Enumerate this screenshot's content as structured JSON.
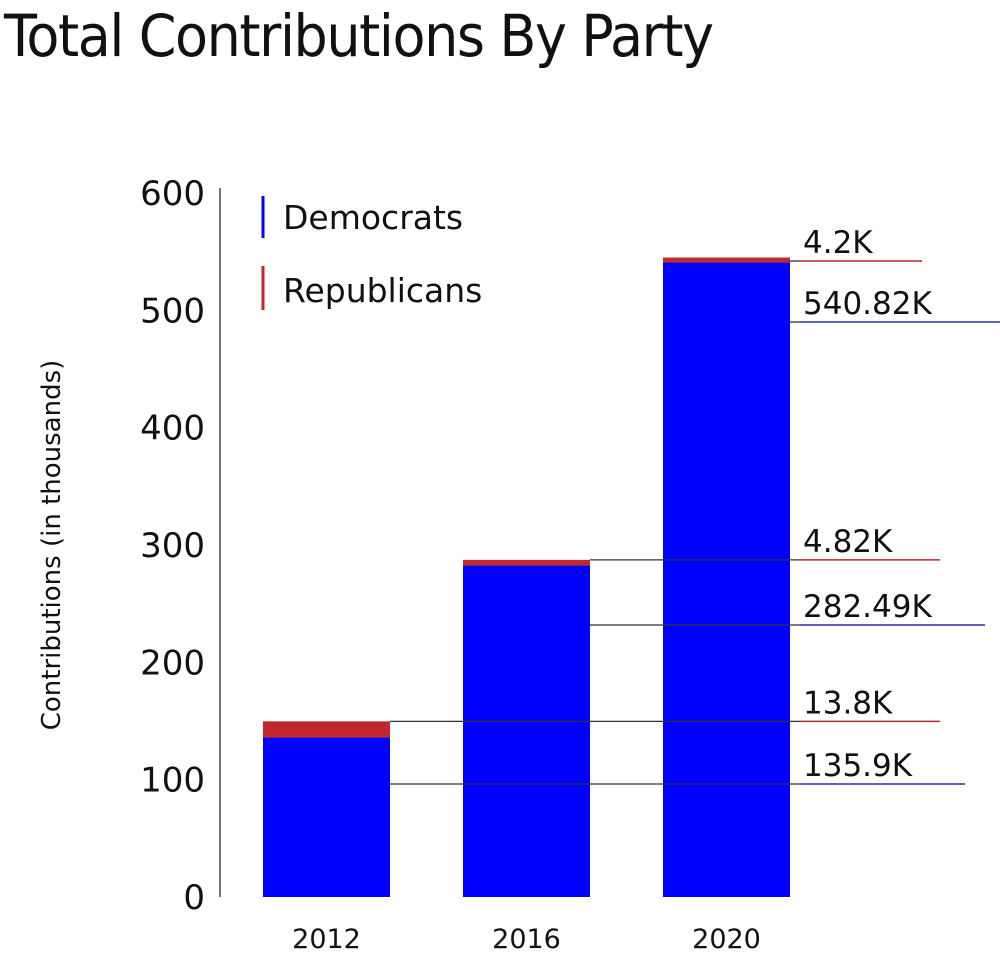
{
  "chart_data": {
    "type": "bar",
    "stacked": true,
    "title": "Total Contributions By Party",
    "xlabel": "",
    "ylabel": "Contributions (in thousands)",
    "ylim": [
      0,
      600
    ],
    "yticks": [
      "0",
      "100",
      "200",
      "300",
      "400",
      "500",
      "600"
    ],
    "categories": [
      "2012",
      "2016",
      "2020"
    ],
    "series": [
      {
        "name": "Democrats",
        "color": "#0000ff",
        "values": [
          135.9,
          282.49,
          540.82
        ],
        "labels": [
          "135.9K",
          "282.49K",
          "540.82K"
        ]
      },
      {
        "name": "Republicans",
        "color": "#c1272d",
        "values": [
          13.8,
          4.82,
          4.2
        ],
        "labels": [
          "13.8K",
          "4.82K",
          "4.2K"
        ]
      }
    ],
    "legend": {
      "placement": "top-left",
      "items": [
        "Democrats",
        "Republicans"
      ]
    },
    "grid": false
  }
}
